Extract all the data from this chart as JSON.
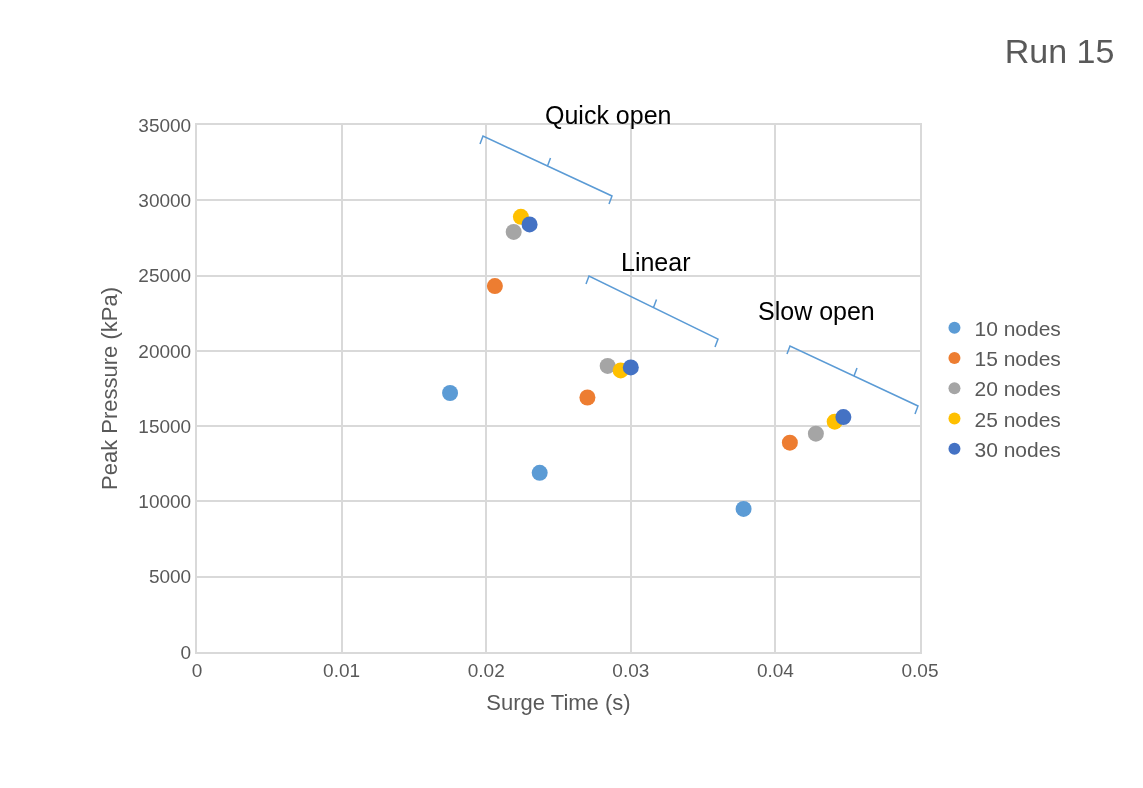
{
  "chart_data": {
    "type": "scatter",
    "title": "Run 15",
    "xlabel": "Surge Time (s)",
    "ylabel": "Peak Pressure (kPa)",
    "xlim": [
      0,
      0.05
    ],
    "xticks": [
      0,
      0.01,
      0.02,
      0.03,
      0.04,
      0.05
    ],
    "ylim": [
      0,
      35000
    ],
    "yticks": [
      0,
      5000,
      10000,
      15000,
      20000,
      25000,
      30000,
      35000
    ],
    "grid": true,
    "legend": "right",
    "marker": "circle",
    "series": [
      {
        "name": "10 nodes",
        "color": "#5b9bd5",
        "x": [
          0.0175,
          0.0237,
          0.0378
        ],
        "values": [
          17200,
          11900,
          9500
        ]
      },
      {
        "name": "15 nodes",
        "color": "#ed7d31",
        "x": [
          0.0206,
          0.027,
          0.041
        ],
        "values": [
          24300,
          16900,
          13900
        ]
      },
      {
        "name": "20 nodes",
        "color": "#a5a5a5",
        "x": [
          0.0219,
          0.0284,
          0.0428
        ],
        "values": [
          27900,
          19000,
          14500
        ]
      },
      {
        "name": "25 nodes",
        "color": "#ffc000",
        "x": [
          0.0224,
          0.0293,
          0.0441
        ],
        "values": [
          28900,
          18700,
          15300
        ]
      },
      {
        "name": "30 nodes",
        "color": "#4472c4",
        "x": [
          0.023,
          0.03,
          0.0447
        ],
        "values": [
          28400,
          18900,
          15600
        ]
      }
    ],
    "annotations": [
      "Quick open",
      "Linear",
      "Slow open"
    ]
  }
}
